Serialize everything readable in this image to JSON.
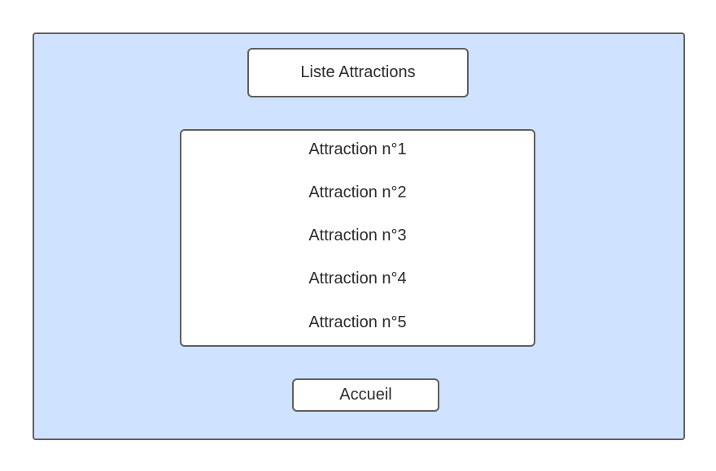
{
  "header": {
    "title": "Liste Attractions"
  },
  "attractions": {
    "items": [
      {
        "label": "Attraction n°1"
      },
      {
        "label": "Attraction n°2"
      },
      {
        "label": "Attraction n°3"
      },
      {
        "label": "Attraction n°4"
      },
      {
        "label": "Attraction n°5"
      }
    ]
  },
  "footer": {
    "home_label": "Accueil"
  },
  "colors": {
    "background_panel": "#cfe2ff",
    "border": "#5f5f5f",
    "text": "#2b2b2b"
  }
}
